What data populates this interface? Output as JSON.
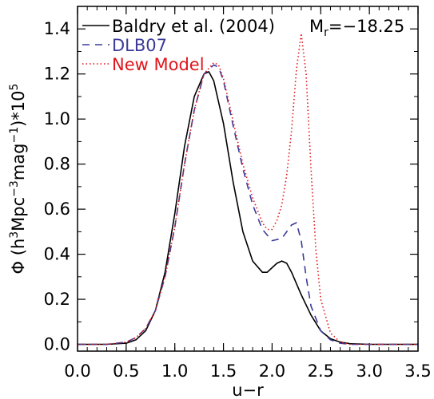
{
  "chart_data": {
    "type": "line",
    "xlabel": "u−r",
    "ylabel_main": "Φ  (h",
    "ylabel_tail": "Mpc",
    "ylabel_exp1": "3",
    "ylabel_exp2": "−3",
    "ylabel_mid": "mag",
    "ylabel_exp3": "−1",
    "ylabel_close": ")*10",
    "ylabel_exp4": "5",
    "annotation": "M",
    "annotation_sub": "r",
    "annotation_value": "=−18.25",
    "xlim": [
      0.0,
      3.5
    ],
    "ylim": [
      -0.03,
      1.5
    ],
    "xticks": [
      0.0,
      0.5,
      1.0,
      1.5,
      2.0,
      2.5,
      3.0,
      3.5
    ],
    "xtick_labels": [
      "0.0",
      "0.5",
      "1.0",
      "1.5",
      "2.0",
      "2.5",
      "3.0",
      "3.5"
    ],
    "yticks": [
      0.0,
      0.2,
      0.4,
      0.6,
      0.8,
      1.0,
      1.2,
      1.4
    ],
    "ytick_labels": [
      "0.0",
      "0.2",
      "0.4",
      "0.6",
      "0.8",
      "1.0",
      "1.2",
      "1.4"
    ],
    "grid": false,
    "legend_position": "top-left",
    "series": [
      {
        "name": "Baldry et al. (2004)",
        "color": "#000000",
        "style": "solid",
        "x": [
          0.0,
          0.3,
          0.5,
          0.6,
          0.7,
          0.8,
          0.9,
          1.0,
          1.1,
          1.2,
          1.3,
          1.35,
          1.4,
          1.5,
          1.6,
          1.7,
          1.8,
          1.9,
          1.95,
          2.0,
          2.05,
          2.1,
          2.15,
          2.2,
          2.3,
          2.4,
          2.5,
          2.6,
          2.7,
          2.8,
          3.0,
          3.5
        ],
        "y": [
          0.0,
          0.0,
          0.005,
          0.02,
          0.06,
          0.15,
          0.32,
          0.58,
          0.88,
          1.1,
          1.2,
          1.21,
          1.17,
          0.98,
          0.72,
          0.5,
          0.37,
          0.32,
          0.32,
          0.34,
          0.36,
          0.37,
          0.36,
          0.32,
          0.22,
          0.13,
          0.06,
          0.025,
          0.01,
          0.003,
          0.0,
          0.0
        ]
      },
      {
        "name": "DLB07",
        "color": "#3b3b9a",
        "style": "dashed",
        "x": [
          0.0,
          0.3,
          0.5,
          0.6,
          0.7,
          0.8,
          0.9,
          1.0,
          1.1,
          1.2,
          1.3,
          1.4,
          1.45,
          1.5,
          1.6,
          1.7,
          1.8,
          1.9,
          2.0,
          2.1,
          2.15,
          2.2,
          2.25,
          2.3,
          2.35,
          2.4,
          2.5,
          2.6,
          2.7,
          2.8,
          3.0,
          3.5
        ],
        "y": [
          0.0,
          0.0,
          0.01,
          0.03,
          0.07,
          0.15,
          0.3,
          0.52,
          0.8,
          1.04,
          1.2,
          1.24,
          1.23,
          1.17,
          0.97,
          0.78,
          0.62,
          0.51,
          0.46,
          0.47,
          0.5,
          0.53,
          0.54,
          0.46,
          0.3,
          0.17,
          0.06,
          0.02,
          0.005,
          0.0,
          0.0,
          0.0
        ]
      },
      {
        "name": "New Model",
        "color": "#e0151b",
        "style": "dotted",
        "x": [
          0.0,
          0.3,
          0.5,
          0.6,
          0.7,
          0.8,
          0.9,
          1.0,
          1.1,
          1.2,
          1.3,
          1.4,
          1.45,
          1.5,
          1.6,
          1.7,
          1.8,
          1.9,
          1.95,
          2.0,
          2.05,
          2.1,
          2.15,
          2.2,
          2.25,
          2.3,
          2.35,
          2.4,
          2.45,
          2.5,
          2.6,
          2.7,
          2.8,
          3.0,
          3.5
        ],
        "y": [
          0.0,
          0.0,
          0.01,
          0.03,
          0.07,
          0.15,
          0.3,
          0.52,
          0.8,
          1.04,
          1.2,
          1.25,
          1.24,
          1.18,
          0.99,
          0.8,
          0.65,
          0.54,
          0.51,
          0.51,
          0.55,
          0.62,
          0.75,
          0.95,
          1.22,
          1.38,
          1.2,
          0.78,
          0.42,
          0.2,
          0.05,
          0.01,
          0.0,
          0.0,
          0.0
        ]
      }
    ]
  }
}
